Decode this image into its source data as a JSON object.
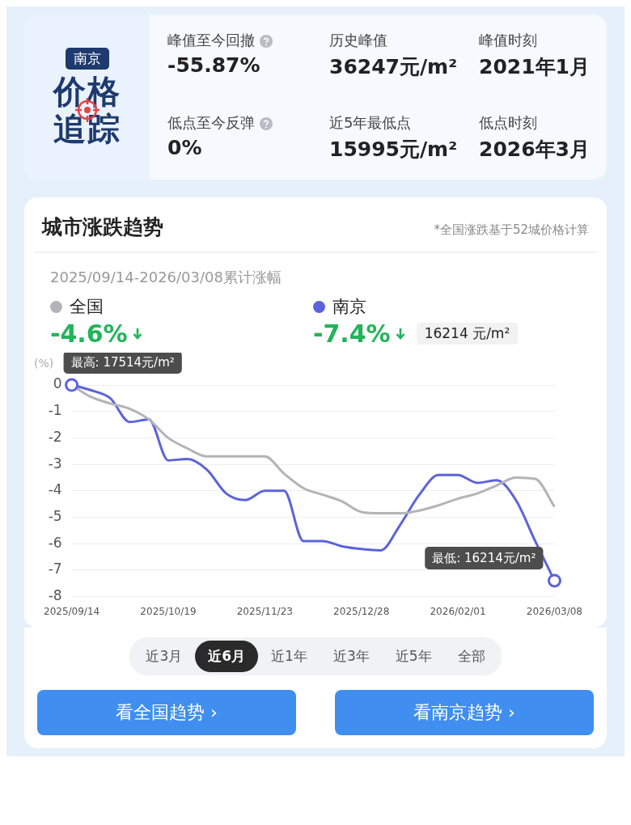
{
  "chart_data": [
    {
      "type": "other",
      "title": "价格追踪",
      "subtitle": "南京",
      "annotations": [
        "峰值至今回撤",
        "-55.87%",
        "历史峰值",
        "36247元/m²",
        "峰值时刻",
        "2021年1月",
        "低点至今反弹",
        "0%",
        "近5年最低点",
        "15995元/m²",
        "低点时刻",
        "2026年3月"
      ]
    },
    {
      "type": "line",
      "title": "城市涨跌趋势",
      "subtitle": "2025/09/14-2026/03/08累计涨幅",
      "ylabel": "(%)",
      "legend": "top",
      "grid": "y",
      "marker": "none",
      "line_style": "solid",
      "x": [
        "2025-09-14",
        "2025-09-21",
        "2025-09-28",
        "2025-10-05",
        "2025-10-12",
        "2025-10-19",
        "2025-10-26",
        "2025-11-02",
        "2025-11-09",
        "2025-11-16",
        "2025-11-23",
        "2025-11-30",
        "2025-12-07",
        "2025-12-14",
        "2025-12-21",
        "2025-12-28",
        "2026-01-04",
        "2026-01-11",
        "2026-01-18",
        "2026-01-25",
        "2026-02-01",
        "2026-02-08",
        "2026-02-15",
        "2026-02-22",
        "2026-03-01",
        "2026-03-08"
      ],
      "series": [
        {
          "name": "全国",
          "color": "#b4b4b8",
          "values": [
            0,
            -0.45,
            -0.7,
            -0.9,
            -1.3,
            -2.0,
            -2.4,
            -2.7,
            -2.7,
            -2.7,
            -2.7,
            -3.35,
            -3.9,
            -4.15,
            -4.4,
            -4.8,
            -4.85,
            -4.85,
            -4.75,
            -4.55,
            -4.3,
            -4.1,
            -3.8,
            -3.5,
            -3.55,
            -4.6
          ]
        },
        {
          "name": "南京",
          "color": "#5b63dc",
          "values": [
            0,
            -0.2,
            -0.5,
            -1.4,
            -1.3,
            -2.85,
            -2.8,
            -3.2,
            -4.1,
            -4.35,
            -4.0,
            -4.0,
            -5.9,
            -5.9,
            -6.1,
            -6.2,
            -6.25,
            -5.3,
            -4.15,
            -3.4,
            -3.4,
            -3.7,
            -3.6,
            -4.35,
            -5.9,
            -7.4
          ]
        }
      ],
      "xlim": [
        "2025-09-14",
        "2026-03-08"
      ],
      "xticks": [
        {
          "value": "2025-09-14",
          "label": "2025/09/14"
        },
        {
          "value": "2025-10-19",
          "label": "2025/10/19"
        },
        {
          "value": "2025-11-23",
          "label": "2025/11/23"
        },
        {
          "value": "2025-12-28",
          "label": "2025/12/28"
        },
        {
          "value": "2026-02-01",
          "label": "2026/02/01"
        },
        {
          "value": "2026-03-08",
          "label": "2026/03/08"
        }
      ],
      "ylim": [
        -8,
        0
      ],
      "yticks": [
        0,
        -1,
        -2,
        -3,
        -4,
        -5,
        -6,
        -7,
        -8
      ],
      "annotations": [
        "*全国涨跌基于52城价格计算",
        "-4.6%",
        "-7.4%",
        "16214 元/m²",
        {
          "text": "最高: 17514元/m²",
          "x": "2025-09-14",
          "y": 0
        },
        {
          "text": "最低: 16214元/m²",
          "x": "2026-03-08",
          "y": -7.4
        }
      ]
    },
    {
      "type": "other",
      "annotations": [
        "近3月",
        "近6月",
        "近1年",
        "近3年",
        "近5年",
        "全部",
        "看全国趋势 ›",
        "看南京趋势 ›"
      ]
    }
  ]
}
